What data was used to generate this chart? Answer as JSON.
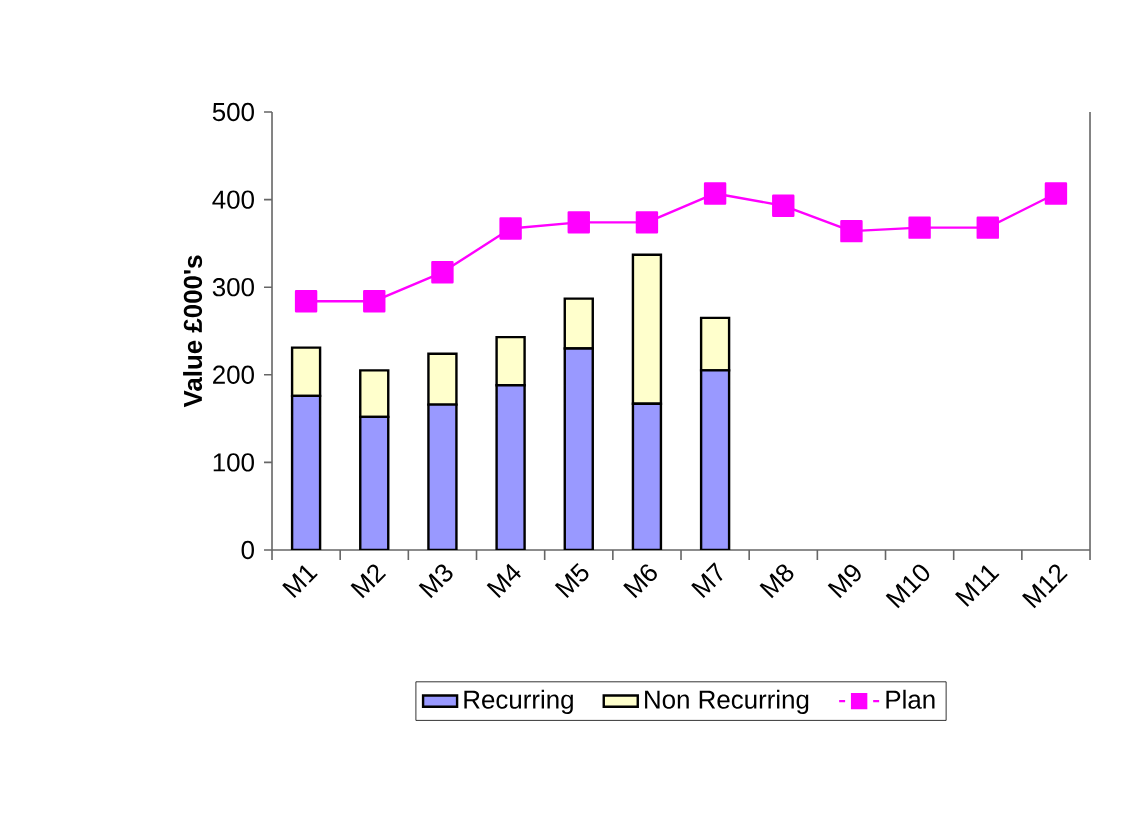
{
  "chart_data": {
    "type": "bar",
    "ylabel": "Value £000's",
    "categories": [
      "M1",
      "M2",
      "M3",
      "M4",
      "M5",
      "M6",
      "M7",
      "M8",
      "M9",
      "M10",
      "M11",
      "M12"
    ],
    "series": [
      {
        "name": "Recurring",
        "color": "#9999ff",
        "values": [
          176,
          152,
          166,
          188,
          230,
          167,
          205,
          null,
          null,
          null,
          null,
          null
        ]
      },
      {
        "name": "Non Recurring",
        "color": "#ffffcc",
        "values": [
          55,
          53,
          58,
          55,
          57,
          170,
          60,
          null,
          null,
          null,
          null,
          null
        ]
      },
      {
        "name": "Plan",
        "type": "line",
        "color": "#ff00ff",
        "marker": "square",
        "values": [
          284,
          284,
          317,
          367,
          374,
          374,
          407,
          393,
          364,
          368,
          368,
          407
        ]
      }
    ],
    "stacked": true,
    "ylim": [
      0,
      500
    ],
    "yticks": [
      0,
      100,
      200,
      300,
      400,
      500
    ],
    "grid": false,
    "legend": "bottom"
  }
}
